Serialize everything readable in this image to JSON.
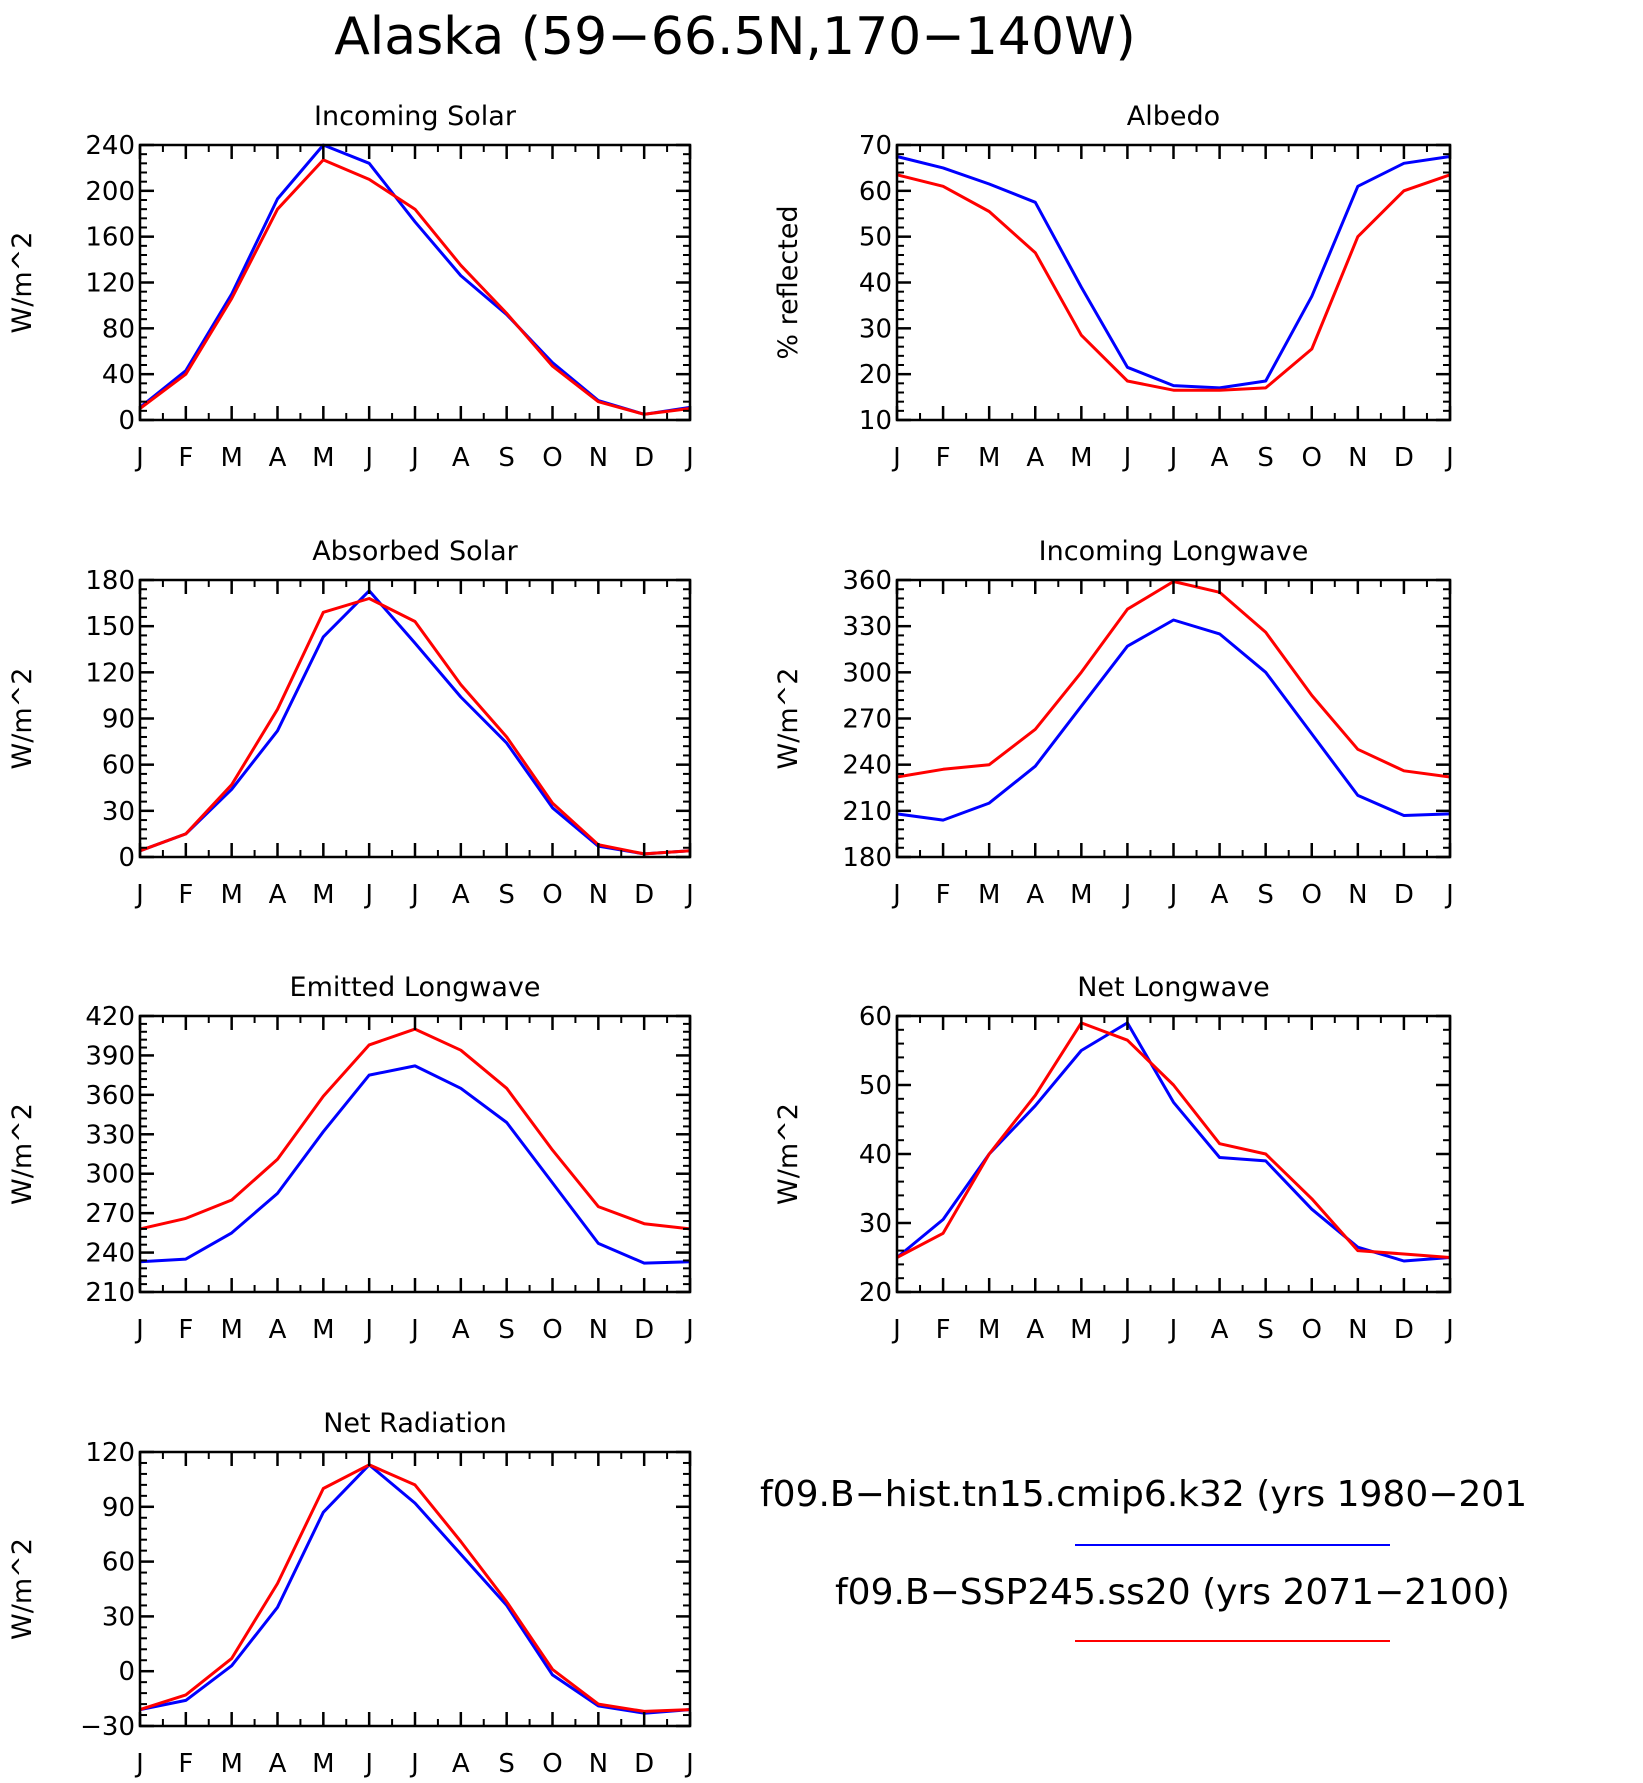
{
  "title": "Alaska (59−66.5N,170−140W)",
  "months": [
    "J",
    "F",
    "M",
    "A",
    "M",
    "J",
    "J",
    "A",
    "S",
    "O",
    "N",
    "D",
    "J"
  ],
  "colors": {
    "hist": "#0000ff",
    "ssp": "#ff0000",
    "axis": "#000000"
  },
  "legend": [
    {
      "label": "f09.B−hist.tn15.cmip6.k32 (yrs 1980−201",
      "color": "#0000ff"
    },
    {
      "label": "f09.B−SSP245.ss20 (yrs 2071−2100)",
      "color": "#ff0000"
    }
  ],
  "chart_data": [
    {
      "type": "line",
      "title": "Incoming Solar",
      "ylabel": "W/m^2",
      "ylim": [
        0,
        240
      ],
      "yticks": [
        0,
        40,
        80,
        120,
        160,
        200,
        240
      ],
      "categories": [
        "J",
        "F",
        "M",
        "A",
        "M",
        "J",
        "J",
        "A",
        "S",
        "O",
        "N",
        "D",
        "J"
      ],
      "series": [
        {
          "name": "f09.B−hist.tn15.cmip6.k32 (yrs 1980−201",
          "color": "#0000ff",
          "values": [
            11,
            43,
            110,
            193,
            240,
            224,
            173,
            126,
            92,
            50,
            17,
            5,
            11
          ]
        },
        {
          "name": "f09.B−SSP245.ss20 (yrs 2071−2100)",
          "color": "#ff0000",
          "values": [
            10,
            40,
            106,
            184,
            227,
            210,
            184,
            135,
            93,
            47,
            16,
            5,
            10
          ]
        }
      ]
    },
    {
      "type": "line",
      "title": "Albedo",
      "ylabel": "% reflected",
      "ylim": [
        10,
        70
      ],
      "yticks": [
        10,
        20,
        30,
        40,
        50,
        60,
        70
      ],
      "categories": [
        "J",
        "F",
        "M",
        "A",
        "M",
        "J",
        "J",
        "A",
        "S",
        "O",
        "N",
        "D",
        "J"
      ],
      "series": [
        {
          "name": "f09.B−hist.tn15.cmip6.k32 (yrs 1980−201",
          "color": "#0000ff",
          "values": [
            67.5,
            65,
            61.5,
            57.5,
            39,
            21.5,
            17.5,
            17,
            18.5,
            37,
            61,
            66,
            67.5
          ]
        },
        {
          "name": "f09.B−SSP245.ss20 (yrs 2071−2100)",
          "color": "#ff0000",
          "values": [
            63.5,
            61,
            55.5,
            46.5,
            28.5,
            18.5,
            16.5,
            16.5,
            17,
            25.5,
            50,
            60,
            63.5
          ]
        }
      ]
    },
    {
      "type": "line",
      "title": "Absorbed Solar",
      "ylabel": "W/m^2",
      "ylim": [
        0,
        180
      ],
      "yticks": [
        0,
        30,
        60,
        90,
        120,
        150,
        180
      ],
      "categories": [
        "J",
        "F",
        "M",
        "A",
        "M",
        "J",
        "J",
        "A",
        "S",
        "O",
        "N",
        "D",
        "J"
      ],
      "series": [
        {
          "name": "f09.B−hist.tn15.cmip6.k32 (yrs 1980−201",
          "color": "#0000ff",
          "values": [
            4,
            15,
            44,
            82,
            143,
            173,
            139,
            104,
            74,
            32,
            7,
            2,
            4
          ]
        },
        {
          "name": "f09.B−SSP245.ss20 (yrs 2071−2100)",
          "color": "#ff0000",
          "values": [
            4,
            15,
            47,
            96,
            159,
            168,
            153,
            112,
            78,
            35,
            8,
            2,
            4
          ]
        }
      ]
    },
    {
      "type": "line",
      "title": "Incoming Longwave",
      "ylabel": "W/m^2",
      "ylim": [
        180,
        360
      ],
      "yticks": [
        180,
        210,
        240,
        270,
        300,
        330,
        360
      ],
      "categories": [
        "J",
        "F",
        "M",
        "A",
        "M",
        "J",
        "J",
        "A",
        "S",
        "O",
        "N",
        "D",
        "J"
      ],
      "series": [
        {
          "name": "f09.B−hist.tn15.cmip6.k32 (yrs 1980−201",
          "color": "#0000ff",
          "values": [
            208,
            204,
            215,
            239,
            278,
            317,
            334,
            325,
            300,
            260,
            220,
            207,
            208
          ]
        },
        {
          "name": "f09.B−SSP245.ss20 (yrs 2071−2100)",
          "color": "#ff0000",
          "values": [
            232,
            237,
            240,
            263,
            300,
            341,
            359,
            352,
            326,
            285,
            250,
            236,
            232
          ]
        }
      ]
    },
    {
      "type": "line",
      "title": "Emitted Longwave",
      "ylabel": "W/m^2",
      "ylim": [
        210,
        420
      ],
      "yticks": [
        210,
        240,
        270,
        300,
        330,
        360,
        390,
        420
      ],
      "categories": [
        "J",
        "F",
        "M",
        "A",
        "M",
        "J",
        "J",
        "A",
        "S",
        "O",
        "N",
        "D",
        "J"
      ],
      "series": [
        {
          "name": "f09.B−hist.tn15.cmip6.k32 (yrs 1980−201",
          "color": "#0000ff",
          "values": [
            233,
            235,
            255,
            285,
            332,
            375,
            382,
            365,
            339,
            293,
            247,
            232,
            233
          ]
        },
        {
          "name": "f09.B−SSP245.ss20 (yrs 2071−2100)",
          "color": "#ff0000",
          "values": [
            258,
            266,
            280,
            311,
            359,
            398,
            410,
            394,
            365,
            318,
            275,
            262,
            258
          ]
        }
      ]
    },
    {
      "type": "line",
      "title": "Net Longwave",
      "ylabel": "W/m^2",
      "ylim": [
        20,
        60
      ],
      "yticks": [
        20,
        30,
        40,
        50,
        60
      ],
      "categories": [
        "J",
        "F",
        "M",
        "A",
        "M",
        "J",
        "J",
        "A",
        "S",
        "O",
        "N",
        "D",
        "J"
      ],
      "series": [
        {
          "name": "f09.B−hist.tn15.cmip6.k32 (yrs 1980−201",
          "color": "#0000ff",
          "values": [
            25,
            30.5,
            40,
            47,
            55,
            59,
            47.5,
            39.5,
            39,
            32,
            26.5,
            24.5,
            25
          ]
        },
        {
          "name": "f09.B−SSP245.ss20 (yrs 2071−2100)",
          "color": "#ff0000",
          "values": [
            25,
            28.5,
            40,
            48.5,
            59,
            56.5,
            50,
            41.5,
            40,
            33.5,
            26,
            25.5,
            25
          ]
        }
      ]
    },
    {
      "type": "line",
      "title": "Net Radiation",
      "ylabel": "W/m^2",
      "ylim": [
        -30,
        120
      ],
      "yticks": [
        -30,
        0,
        30,
        60,
        90,
        120
      ],
      "categories": [
        "J",
        "F",
        "M",
        "A",
        "M",
        "J",
        "J",
        "A",
        "S",
        "O",
        "N",
        "D",
        "J"
      ],
      "series": [
        {
          "name": "f09.B−hist.tn15.cmip6.k32 (yrs 1980−201",
          "color": "#0000ff",
          "values": [
            -21,
            -16,
            3,
            35,
            87,
            113,
            92,
            64,
            36,
            -2,
            -19,
            -23,
            -21
          ]
        },
        {
          "name": "f09.B−SSP245.ss20 (yrs 2071−2100)",
          "color": "#ff0000",
          "values": [
            -21,
            -13,
            7,
            48,
            100,
            113,
            102,
            71,
            38,
            1,
            -18,
            -22,
            -21
          ]
        }
      ]
    }
  ]
}
